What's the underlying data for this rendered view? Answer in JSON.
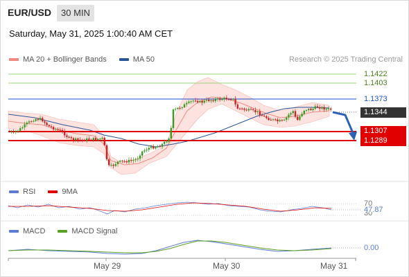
{
  "header": {
    "symbol": "EUR/USD",
    "interval": "30 MIN",
    "datetime": "Saturday, May 31, 2025 1:00:40 AM CET"
  },
  "main_legend": {
    "items": [
      {
        "label": "MA 20 + Bollinger Bands",
        "color": "#f08a80"
      },
      {
        "label": "MA 50",
        "color": "#2a5598"
      }
    ],
    "credit": "Research © 2025 Trading Central"
  },
  "levels": {
    "r2": "1.1422",
    "r1": "1.1403",
    "pivot": "1.1373",
    "last": "1.1344",
    "s1": "1.1307",
    "s2": "1.1289"
  },
  "rsi_panel": {
    "legend": [
      {
        "label": "RSI",
        "color": "#5b7bd5"
      },
      {
        "label": "9MA",
        "color": "#e00000"
      }
    ],
    "upper": "70",
    "value": "47.87",
    "lower": "30"
  },
  "macd_panel": {
    "legend": [
      {
        "label": "MACD",
        "color": "#5b7bd5"
      },
      {
        "label": "MACD Signal",
        "color": "#5aa020"
      }
    ],
    "value": "0.00"
  },
  "x_axis": {
    "labels": [
      "May 29",
      "May 30",
      "May 31"
    ]
  },
  "colors": {
    "bull": "#3c9a24",
    "bear": "#c62424",
    "support": "#e00000",
    "pivot": "#1a4fd0",
    "resistance": "#9bd07a",
    "forecast": "#2a62b5"
  }
}
